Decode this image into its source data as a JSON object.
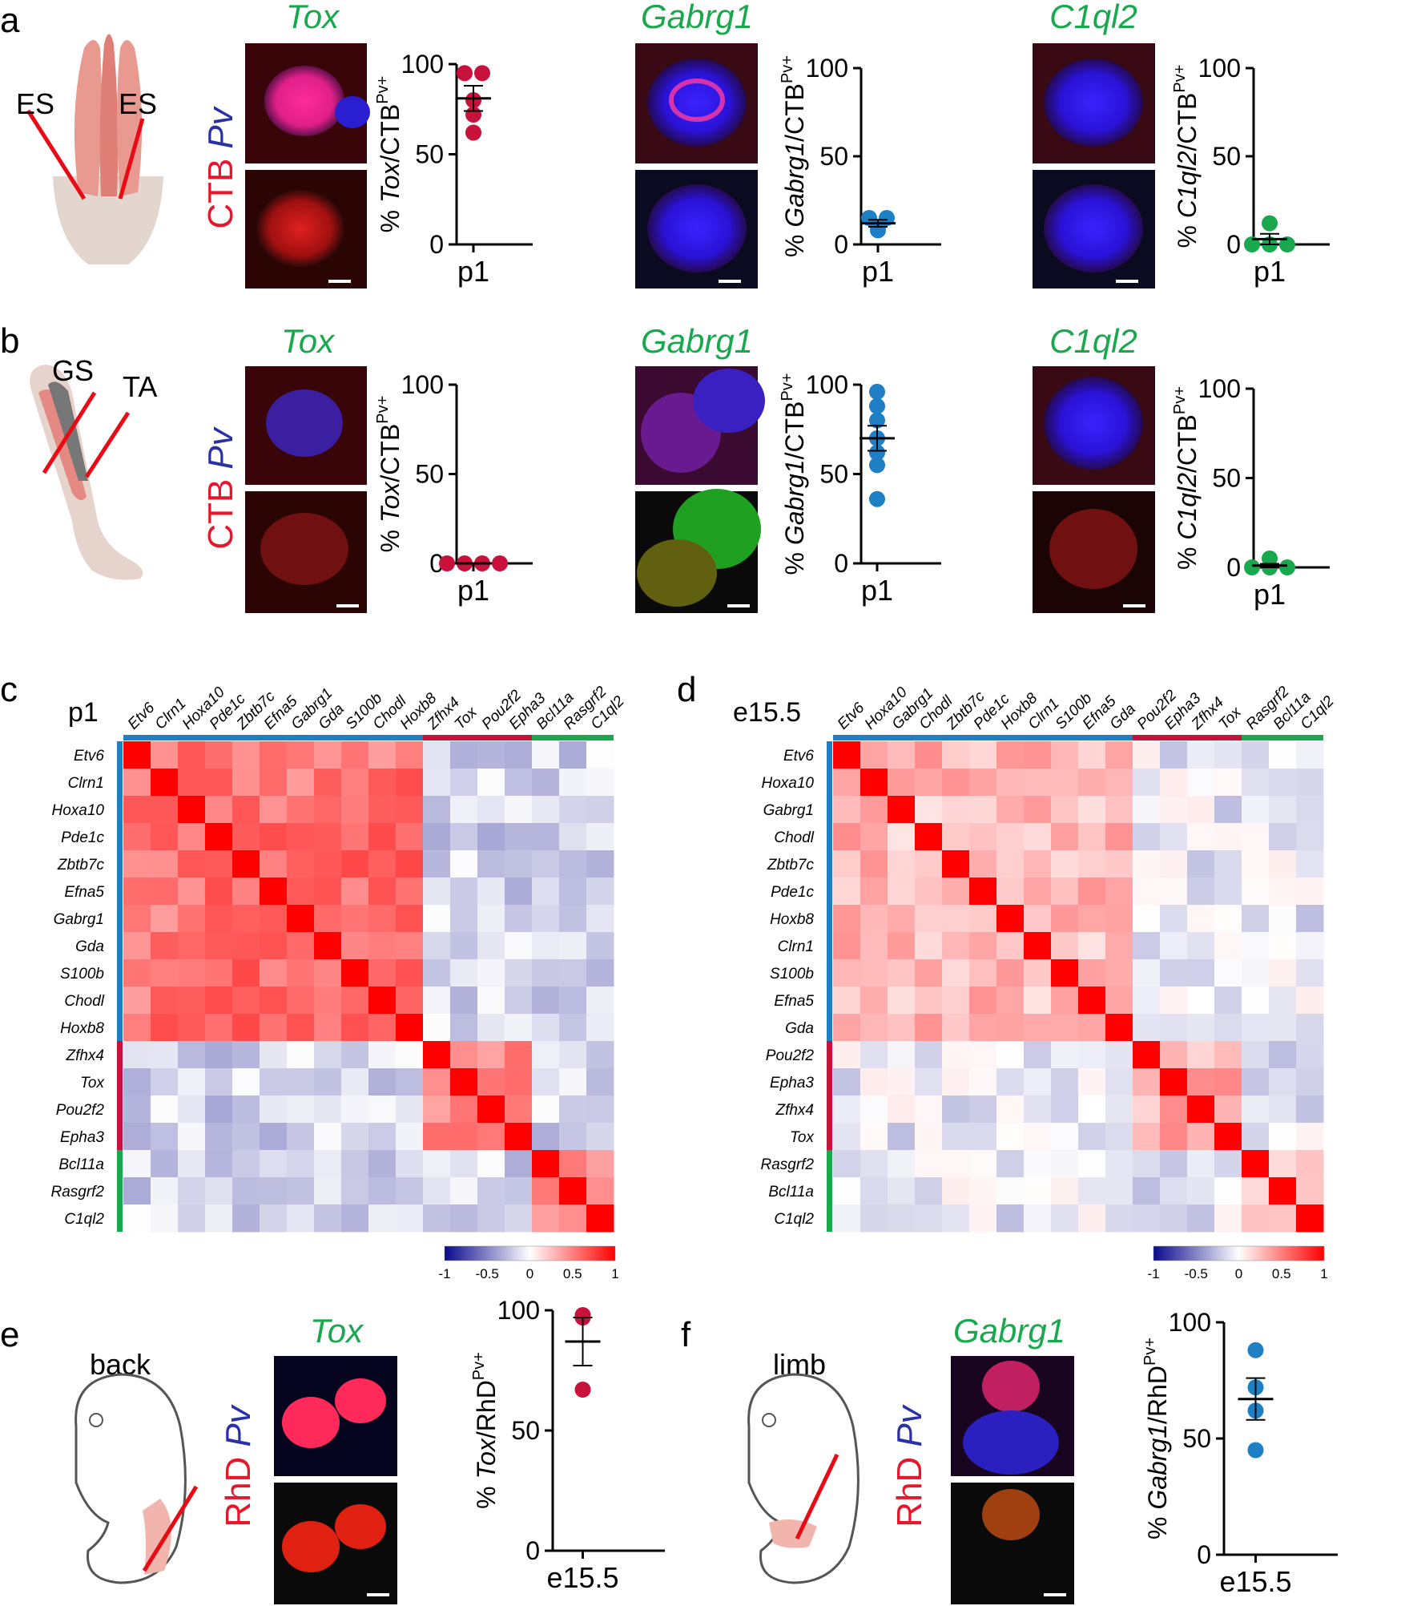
{
  "panels": {
    "a": {
      "label": "a",
      "left_label": "ES",
      "right_label": "ES",
      "stain_red": "CTB",
      "stain_blue": "Pv",
      "genes": [
        "Tox",
        "Gabrg1",
        "C1ql2"
      ],
      "ylabels": [
        {
          "pre": "% ",
          "gene": "Tox",
          "post": "/CTB",
          "sup": "Pv+"
        },
        {
          "pre": "% ",
          "gene": "Gabrg1",
          "post": "/CTB",
          "sup": "Pv+"
        },
        {
          "pre": "% ",
          "gene": "C1ql2",
          "post": "/CTB",
          "sup": "Pv+"
        }
      ],
      "xtick": "p1"
    },
    "b": {
      "label": "b",
      "left_label": "GS",
      "right_label": "TA",
      "stain_red": "CTB",
      "stain_blue": "Pv",
      "genes": [
        "Tox",
        "Gabrg1",
        "C1ql2"
      ],
      "ylabels": [
        {
          "pre": "% ",
          "gene": "Tox",
          "post": "/CTB",
          "sup": "Pv+"
        },
        {
          "pre": "% ",
          "gene": "Gabrg1",
          "post": "/CTB",
          "sup": "Pv+"
        },
        {
          "pre": "% ",
          "gene": "C1ql2",
          "post": "/CTB",
          "sup": "Pv+"
        }
      ],
      "xtick": "p1"
    },
    "c": {
      "label": "c",
      "title": "p1"
    },
    "d": {
      "label": "d",
      "title": "e15.5"
    },
    "e": {
      "label": "e",
      "embryo_label": "back",
      "gene": "Tox",
      "stain_red": "RhD",
      "stain_blue": "Pv",
      "ylabel": {
        "pre": "% ",
        "gene": "Tox",
        "post": "/RhD",
        "sup": "Pv+"
      },
      "xtick": "e15.5"
    },
    "f": {
      "label": "f",
      "embryo_label": "limb",
      "gene": "Gabrg1",
      "stain_red": "RhD",
      "stain_blue": "Pv",
      "ylabel": {
        "pre": "% ",
        "gene": "Gabrg1",
        "post": "/RhD",
        "sup": "Pv+"
      },
      "xtick": "e15.5"
    }
  },
  "colors": {
    "pink": "#c8123c",
    "blue": "#1f7fc4",
    "green": "#1aa84e",
    "gene_text": "#1aa84e",
    "stain_red": "#e8162a",
    "stain_blue": "#2a31a8"
  },
  "chart_data": [
    {
      "id": "a1",
      "type": "scatter",
      "xtick": "p1",
      "yticks": [
        "0",
        "50",
        "100"
      ],
      "ylim": [
        0,
        100
      ],
      "color": "pink",
      "values": [
        95,
        95,
        80,
        72,
        62
      ],
      "mean": 81,
      "sem": 7
    },
    {
      "id": "a2",
      "type": "scatter",
      "xtick": "p1",
      "yticks": [
        "0",
        "50",
        "100"
      ],
      "ylim": [
        0,
        100
      ],
      "color": "blue",
      "values": [
        15,
        15,
        10,
        8
      ],
      "mean": 12,
      "sem": 2
    },
    {
      "id": "a3",
      "type": "scatter",
      "xtick": "p1",
      "yticks": [
        "0",
        "50",
        "100"
      ],
      "ylim": [
        0,
        100
      ],
      "color": "green",
      "values": [
        12,
        0,
        0,
        0
      ],
      "mean": 3,
      "sem": 3
    },
    {
      "id": "b1",
      "type": "scatter",
      "xtick": "p1",
      "yticks": [
        "0",
        "50",
        "100"
      ],
      "ylim": [
        0,
        100
      ],
      "color": "pink",
      "values": [
        0,
        0,
        0,
        0
      ],
      "mean": 0,
      "sem": 0
    },
    {
      "id": "b2",
      "type": "scatter",
      "xtick": "p1",
      "yticks": [
        "0",
        "50",
        "100"
      ],
      "ylim": [
        0,
        100
      ],
      "color": "blue",
      "values": [
        96,
        88,
        80,
        70,
        62,
        55,
        36
      ],
      "mean": 70,
      "sem": 7
    },
    {
      "id": "b3",
      "type": "scatter",
      "xtick": "p1",
      "yticks": [
        "0",
        "50",
        "100"
      ],
      "ylim": [
        0,
        100
      ],
      "color": "green",
      "values": [
        5,
        0,
        0,
        0
      ],
      "mean": 1,
      "sem": 1
    },
    {
      "id": "e1",
      "type": "scatter",
      "xtick": "e15.5",
      "yticks": [
        "0",
        "50",
        "100"
      ],
      "ylim": [
        0,
        100
      ],
      "color": "pink",
      "values": [
        98,
        97,
        67
      ],
      "mean": 87,
      "sem": 10
    },
    {
      "id": "f1",
      "type": "scatter",
      "xtick": "e15.5",
      "yticks": [
        "0",
        "50",
        "100"
      ],
      "ylim": [
        0,
        100
      ],
      "color": "blue",
      "values": [
        88,
        72,
        62,
        45
      ],
      "mean": 67,
      "sem": 9
    },
    {
      "id": "c",
      "type": "heatmap",
      "title": "p1",
      "labels": [
        "Etv6",
        "Clrn1",
        "Hoxa10",
        "Pde1c",
        "Zbtb7c",
        "Efna5",
        "Gabrg1",
        "Gda",
        "S100b",
        "Chodl",
        "Hoxb8",
        "Zfhx4",
        "Tox",
        "Pou2f2",
        "Epha3",
        "Bcl11a",
        "Rasgrf2",
        "C1ql2"
      ],
      "groups": [
        {
          "color": "blue",
          "count": 11,
          "within": 0.55
        },
        {
          "color": "pink",
          "count": 4,
          "within": 0.5
        },
        {
          "color": "green",
          "count": 3,
          "within": 0.45
        }
      ],
      "between": -0.18,
      "colorbar_ticks": [
        "-1",
        "-0.5",
        "0",
        "0.5",
        "1"
      ],
      "vrange": [
        -1,
        1
      ]
    },
    {
      "id": "d",
      "type": "heatmap",
      "title": "e15.5",
      "labels": [
        "Etv6",
        "Hoxa10",
        "Gabrg1",
        "Chodl",
        "Zbtb7c",
        "Pde1c",
        "Hoxb8",
        "Clrn1",
        "S100b",
        "Efna5",
        "Gda",
        "Pou2f2",
        "Epha3",
        "Zfhx4",
        "Tox",
        "Rasgrf2",
        "Bcl11a",
        "C1ql2"
      ],
      "groups": [
        {
          "color": "blue",
          "count": 11,
          "within": 0.28
        },
        {
          "color": "pink",
          "count": 4,
          "within": 0.32
        },
        {
          "color": "green",
          "count": 3,
          "within": 0.22
        }
      ],
      "between": -0.1,
      "colorbar_ticks": [
        "-1",
        "-0.5",
        "0",
        "0.5",
        "1"
      ],
      "vrange": [
        -1,
        1
      ]
    }
  ]
}
